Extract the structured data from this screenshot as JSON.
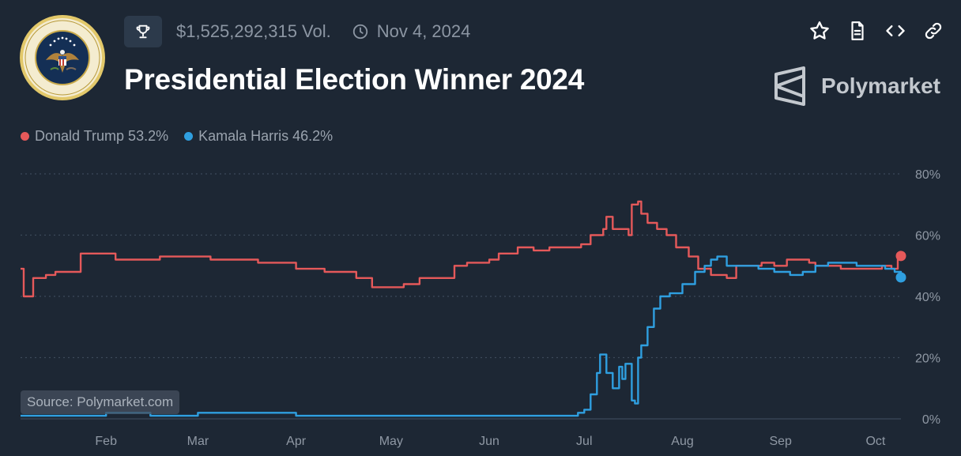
{
  "header": {
    "volume": "$1,525,292,315 Vol.",
    "date": "Nov 4, 2024",
    "title": "Presidential Election Winner 2024",
    "brand": "Polymarket",
    "seal_text": "SEAL OF THE PRESIDENT OF THE UNITED STATES"
  },
  "icons": [
    "trophy-icon",
    "clock-icon",
    "star-icon",
    "document-icon",
    "code-icon",
    "link-icon",
    "polymarket-logo"
  ],
  "source": "Source: Polymarket.com",
  "colors": {
    "background": "#1d2734",
    "trump": "#e5595a",
    "harris": "#2f9fe0"
  },
  "chart_data": {
    "type": "line",
    "x_tick_labels": [
      "Feb",
      "Mar",
      "Apr",
      "May",
      "Jun",
      "Jul",
      "Aug",
      "Sep",
      "Oct"
    ],
    "x_tick_dates": [
      "2024-02-01",
      "2024-03-01",
      "2024-04-01",
      "2024-05-01",
      "2024-06-01",
      "2024-07-01",
      "2024-08-01",
      "2024-09-01",
      "2024-10-01"
    ],
    "x_range": [
      "2024-01-05",
      "2024-10-09"
    ],
    "y_tick_labels": [
      "0%",
      "20%",
      "40%",
      "60%",
      "80%"
    ],
    "y_ticks": [
      0,
      20,
      40,
      60,
      80
    ],
    "ylim": [
      0,
      80
    ],
    "grid": "horizontal-dotted",
    "legend_position": "top-left",
    "series": [
      {
        "name": "Donald Trump",
        "legend": "Donald Trump 53.2%",
        "color": "#e5595a",
        "points": [
          [
            "2024-01-05",
            49
          ],
          [
            "2024-01-06",
            40
          ],
          [
            "2024-01-08",
            40
          ],
          [
            "2024-01-09",
            46
          ],
          [
            "2024-01-11",
            46
          ],
          [
            "2024-01-13",
            47
          ],
          [
            "2024-01-16",
            48
          ],
          [
            "2024-01-20",
            48
          ],
          [
            "2024-01-23",
            48
          ],
          [
            "2024-01-24",
            54
          ],
          [
            "2024-02-01",
            54
          ],
          [
            "2024-02-04",
            52
          ],
          [
            "2024-02-15",
            52
          ],
          [
            "2024-02-18",
            53
          ],
          [
            "2024-03-01",
            53
          ],
          [
            "2024-03-05",
            52
          ],
          [
            "2024-03-10",
            52
          ],
          [
            "2024-03-20",
            51
          ],
          [
            "2024-04-01",
            49
          ],
          [
            "2024-04-10",
            48
          ],
          [
            "2024-04-20",
            46
          ],
          [
            "2024-04-25",
            43
          ],
          [
            "2024-05-01",
            43
          ],
          [
            "2024-05-05",
            44
          ],
          [
            "2024-05-10",
            46
          ],
          [
            "2024-05-20",
            46
          ],
          [
            "2024-05-21",
            50
          ],
          [
            "2024-05-25",
            51
          ],
          [
            "2024-06-01",
            52
          ],
          [
            "2024-06-04",
            54
          ],
          [
            "2024-06-10",
            56
          ],
          [
            "2024-06-15",
            55
          ],
          [
            "2024-06-20",
            56
          ],
          [
            "2024-06-30",
            57
          ],
          [
            "2024-07-03",
            60
          ],
          [
            "2024-07-07",
            62
          ],
          [
            "2024-07-08",
            66
          ],
          [
            "2024-07-10",
            62
          ],
          [
            "2024-07-14",
            62
          ],
          [
            "2024-07-15",
            60
          ],
          [
            "2024-07-16",
            70
          ],
          [
            "2024-07-18",
            71
          ],
          [
            "2024-07-19",
            67
          ],
          [
            "2024-07-21",
            64
          ],
          [
            "2024-07-24",
            62
          ],
          [
            "2024-07-27",
            60
          ],
          [
            "2024-07-30",
            56
          ],
          [
            "2024-08-03",
            53
          ],
          [
            "2024-08-06",
            49
          ],
          [
            "2024-08-10",
            47
          ],
          [
            "2024-08-15",
            46
          ],
          [
            "2024-08-18",
            50
          ],
          [
            "2024-08-22",
            50
          ],
          [
            "2024-08-26",
            51
          ],
          [
            "2024-08-30",
            50
          ],
          [
            "2024-09-03",
            52
          ],
          [
            "2024-09-07",
            52
          ],
          [
            "2024-09-10",
            51
          ],
          [
            "2024-09-12",
            50
          ],
          [
            "2024-09-16",
            50
          ],
          [
            "2024-09-20",
            49
          ],
          [
            "2024-09-25",
            49
          ],
          [
            "2024-09-30",
            49
          ],
          [
            "2024-10-03",
            50
          ],
          [
            "2024-10-06",
            49
          ],
          [
            "2024-10-08",
            52
          ],
          [
            "2024-10-09",
            53.2
          ]
        ]
      },
      {
        "name": "Kamala Harris",
        "legend": "Kamala Harris 46.2%",
        "color": "#2f9fe0",
        "points": [
          [
            "2024-01-05",
            1
          ],
          [
            "2024-01-20",
            1
          ],
          [
            "2024-02-01",
            2
          ],
          [
            "2024-02-15",
            1
          ],
          [
            "2024-03-01",
            2
          ],
          [
            "2024-03-20",
            2
          ],
          [
            "2024-04-01",
            1
          ],
          [
            "2024-04-15",
            1
          ],
          [
            "2024-05-01",
            1
          ],
          [
            "2024-05-20",
            1
          ],
          [
            "2024-06-01",
            1
          ],
          [
            "2024-06-15",
            1
          ],
          [
            "2024-06-29",
            2
          ],
          [
            "2024-07-01",
            3
          ],
          [
            "2024-07-03",
            8
          ],
          [
            "2024-07-05",
            15
          ],
          [
            "2024-07-06",
            21
          ],
          [
            "2024-07-08",
            15
          ],
          [
            "2024-07-10",
            10
          ],
          [
            "2024-07-12",
            17
          ],
          [
            "2024-07-13",
            13
          ],
          [
            "2024-07-14",
            18
          ],
          [
            "2024-07-16",
            6
          ],
          [
            "2024-07-17",
            5
          ],
          [
            "2024-07-18",
            20
          ],
          [
            "2024-07-19",
            24
          ],
          [
            "2024-07-21",
            30
          ],
          [
            "2024-07-23",
            36
          ],
          [
            "2024-07-25",
            40
          ],
          [
            "2024-07-28",
            41
          ],
          [
            "2024-08-01",
            44
          ],
          [
            "2024-08-05",
            48
          ],
          [
            "2024-08-08",
            50
          ],
          [
            "2024-08-10",
            52
          ],
          [
            "2024-08-12",
            53
          ],
          [
            "2024-08-15",
            50
          ],
          [
            "2024-08-20",
            50
          ],
          [
            "2024-08-25",
            49
          ],
          [
            "2024-08-30",
            48
          ],
          [
            "2024-09-04",
            47
          ],
          [
            "2024-09-08",
            48
          ],
          [
            "2024-09-12",
            50
          ],
          [
            "2024-09-16",
            51
          ],
          [
            "2024-09-20",
            51
          ],
          [
            "2024-09-25",
            50
          ],
          [
            "2024-09-30",
            50
          ],
          [
            "2024-10-04",
            49
          ],
          [
            "2024-10-07",
            48
          ],
          [
            "2024-10-09",
            46.2
          ]
        ]
      }
    ]
  }
}
